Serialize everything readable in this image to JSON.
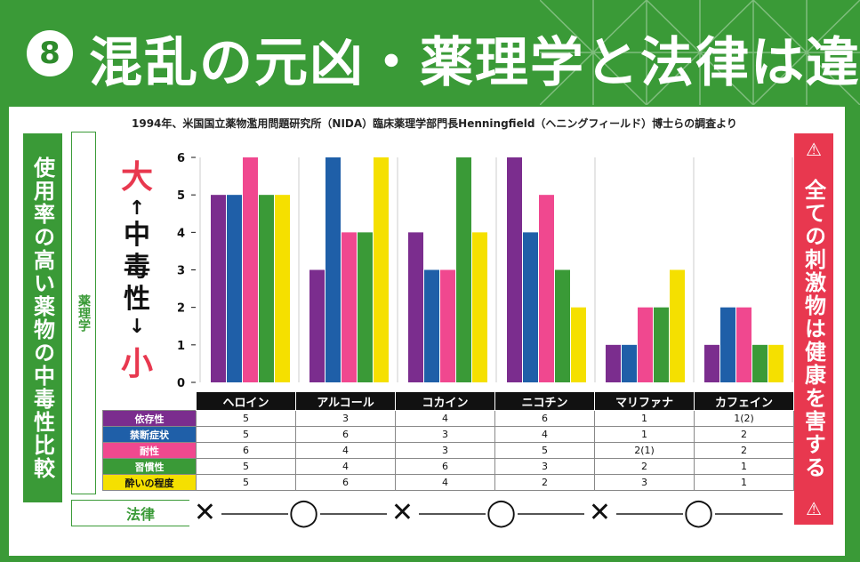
{
  "header": {
    "badge": "8",
    "title": "混乱の元凶・薬理学と法律は違う"
  },
  "source_note": "1994年、米国国立薬物濫用問題研究所（NIDA）臨床薬理学部門長Henningfield（ヘニングフィールド）博士らの調査より",
  "left_label": "使用率の高い薬物の中毒性比較",
  "pharmacology_label": "薬理学",
  "scale": {
    "big": "大",
    "arrow_up": "↑",
    "middle": "中毒性",
    "arrow_down": "↓",
    "small": "小"
  },
  "right_label": {
    "warn_top": "⚠",
    "text": "全ての刺激物は健康を害する",
    "warn_bottom": "⚠"
  },
  "colors": {
    "dependence": "#7b2d8e",
    "withdrawal": "#1f5fa8",
    "tolerance": "#f0488f",
    "reinforcement": "#3a9a37",
    "intoxication": "#f5e000",
    "brand_green": "#3a9a37",
    "warn_red": "#e8384f"
  },
  "chart_data": {
    "type": "bar",
    "categories": [
      "ヘロイン",
      "アルコール",
      "コカイン",
      "ニコチン",
      "マリファナ",
      "カフェイン"
    ],
    "ylim": [
      0,
      6
    ],
    "yticks": [
      "0",
      "1",
      "2",
      "3",
      "4",
      "5",
      "6"
    ],
    "series": [
      {
        "name": "依存性",
        "values": [
          5,
          3,
          4,
          6,
          1,
          1
        ],
        "labels": [
          "5",
          "3",
          "4",
          "6",
          "1",
          "1(2)"
        ]
      },
      {
        "name": "禁断症状",
        "values": [
          5,
          6,
          3,
          4,
          1,
          2
        ],
        "labels": [
          "5",
          "6",
          "3",
          "4",
          "1",
          "2"
        ]
      },
      {
        "name": "耐性",
        "values": [
          6,
          4,
          3,
          5,
          2,
          2
        ],
        "labels": [
          "6",
          "4",
          "3",
          "5",
          "2(1)",
          "2"
        ]
      },
      {
        "name": "習慣性",
        "values": [
          5,
          4,
          6,
          3,
          2,
          1
        ],
        "labels": [
          "5",
          "4",
          "6",
          "3",
          "2",
          "1"
        ]
      },
      {
        "name": "酔いの程度",
        "values": [
          5,
          6,
          4,
          2,
          3,
          1
        ],
        "labels": [
          "5",
          "6",
          "4",
          "2",
          "3",
          "1"
        ]
      }
    ]
  },
  "law": {
    "label": "法律",
    "marks": [
      "✕",
      "◯",
      "✕",
      "◯",
      "✕",
      "◯"
    ]
  }
}
